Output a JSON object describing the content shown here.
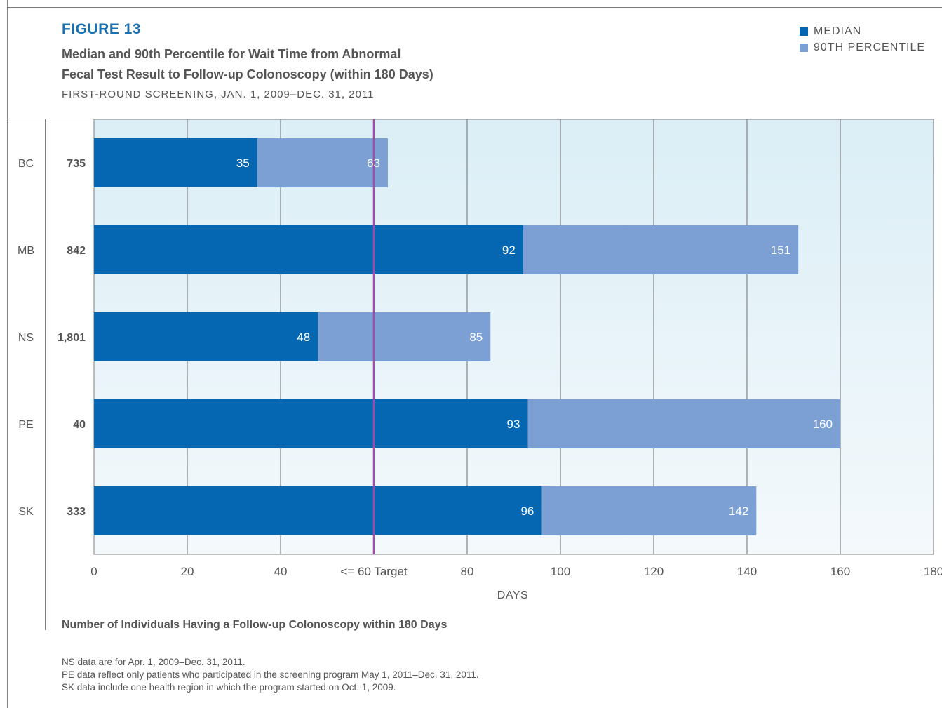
{
  "header": {
    "figure_label": "FIGURE 13",
    "title_line1": "Median and 90th Percentile for Wait Time from Abnormal",
    "title_line2": "Fecal Test Result to Follow-up Colonoscopy (within 180 Days)",
    "subtitle": "FIRST-ROUND SCREENING, JAN. 1, 2009–DEC. 31, 2011"
  },
  "legend": [
    {
      "label": "MEDIAN",
      "color": "#0567b1"
    },
    {
      "label": "90TH PERCENTILE",
      "color": "#7c9fd4"
    }
  ],
  "chart_data": {
    "type": "bar",
    "orientation": "horizontal",
    "stacked_overlay": true,
    "categories": [
      "BC",
      "MB",
      "NS",
      "PE",
      "SK"
    ],
    "counts": [
      "735",
      "842",
      "1,801",
      "40",
      "333"
    ],
    "series": [
      {
        "name": "MEDIAN",
        "color": "#0567b1",
        "values": [
          35,
          92,
          48,
          93,
          96
        ]
      },
      {
        "name": "90TH PERCENTILE",
        "color": "#7c9fd4",
        "values": [
          63,
          151,
          85,
          160,
          142
        ]
      }
    ],
    "xlim": [
      0,
      180
    ],
    "x_ticks": [
      "0",
      "20",
      "40",
      "<= 60 Target",
      "80",
      "100",
      "120",
      "140",
      "160",
      "180"
    ],
    "x_tick_values": [
      0,
      20,
      40,
      60,
      80,
      100,
      120,
      140,
      160,
      180
    ],
    "target_value": 60,
    "target_color": "#9b4fa8",
    "xlabel": "DAYS",
    "grid": true,
    "legend_position": "top-right"
  },
  "count_caption": "Number of Individuals Having a Follow-up Colonoscopy within 180 Days",
  "footnotes": [
    "NS data are for Apr. 1, 2009–Dec. 31, 2011.",
    "PE data reflect only patients who participated in the screening program May 1, 2011–Dec. 31, 2011.",
    "SK data include one health region in which the program started on Oct. 1, 2009."
  ]
}
